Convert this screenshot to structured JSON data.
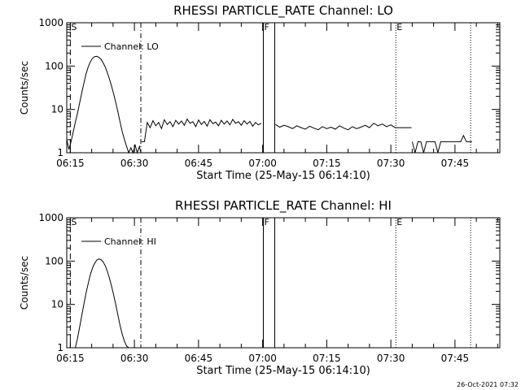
{
  "footer": {
    "timestamp": "26-Oct-2021 07:32"
  },
  "chart_data": [
    {
      "type": "line",
      "title": "RHESSI PARTICLE_RATE Channel: LO",
      "xlabel": "Start Time (25-May-15 06:14:10)",
      "ylabel": "Counts/sec",
      "yscale": "log",
      "ylim": [
        1,
        1000
      ],
      "xlim": [
        "06:14:10",
        "07:55:30"
      ],
      "x_ticks": [
        "06:15",
        "06:30",
        "06:45",
        "07:00",
        "07:15",
        "07:30",
        "07:45"
      ],
      "y_ticks": [
        "1",
        "10",
        "100",
        "1000"
      ],
      "legend": {
        "label": "Channel: LO",
        "position": "top-left"
      },
      "grid": false,
      "markers": [
        {
          "time": "06:15:00",
          "label": "S",
          "style": "dashed"
        },
        {
          "time": "06:31:30",
          "label": "",
          "style": "dash-dot"
        },
        {
          "time": "07:00:10",
          "label": "F",
          "style": "solid"
        },
        {
          "time": "07:02:50",
          "label": "",
          "style": "solid"
        },
        {
          "time": "07:31:10",
          "label": "E",
          "style": "dotted"
        },
        {
          "time": "07:48:40",
          "label": "",
          "style": "dotted"
        }
      ],
      "series": [
        {
          "segments": [
            {
              "x": [
                "06:14:10",
                "06:14:40",
                "06:15:10",
                "06:15:40",
                "06:16:10",
                "06:16:40",
                "06:17:10",
                "06:17:40",
                "06:18:10",
                "06:18:40",
                "06:19:10",
                "06:19:40",
                "06:20:10",
                "06:20:40",
                "06:21:10",
                "06:21:40",
                "06:22:10",
                "06:22:40",
                "06:23:10",
                "06:23:40",
                "06:24:10",
                "06:24:40",
                "06:25:10",
                "06:25:40",
                "06:26:10",
                "06:26:40",
                "06:27:10",
                "06:27:40",
                "06:28:10",
                "06:28:40",
                "06:29:10",
                "06:29:40",
                "06:30:10",
                "06:30:40",
                "06:31:10",
                "06:31:30"
              ],
              "y": [
                2,
                1.2,
                1.8,
                3,
                5,
                8,
                14,
                24,
                40,
                65,
                95,
                125,
                150,
                165,
                168,
                160,
                145,
                120,
                95,
                70,
                50,
                34,
                22,
                14,
                8.5,
                5,
                3,
                2,
                1.4,
                1,
                1.3,
                1,
                1.5,
                1,
                1.4,
                1
              ]
            },
            {
              "x": [
                "06:31:40",
                "06:32:20",
                "06:33:00",
                "06:33:40",
                "06:34:20",
                "06:35:00",
                "06:35:40",
                "06:36:20",
                "06:37:00",
                "06:37:40",
                "06:38:20",
                "06:39:00",
                "06:39:40",
                "06:40:20",
                "06:41:00",
                "06:41:40",
                "06:42:20",
                "06:43:00",
                "06:43:40",
                "06:44:20",
                "06:45:00",
                "06:45:40",
                "06:46:20",
                "06:47:00",
                "06:47:40",
                "06:48:20",
                "06:49:00",
                "06:49:40",
                "06:50:20",
                "06:51:00",
                "06:51:40",
                "06:52:20",
                "06:53:00",
                "06:53:40",
                "06:54:20",
                "06:55:00",
                "06:55:40",
                "06:56:20",
                "06:57:00",
                "06:57:40",
                "06:58:20",
                "06:59:00",
                "06:59:40"
              ],
              "y": [
                1.8,
                1.8,
                5,
                3.8,
                5.5,
                4.2,
                5,
                3.6,
                5.8,
                4.5,
                5.2,
                4,
                5.6,
                4.6,
                5.4,
                4.3,
                6,
                4.8,
                5.2,
                4,
                5.7,
                4.5,
                5.3,
                4.1,
                5.8,
                4.7,
                5.1,
                4.2,
                5.6,
                4.6,
                5.4,
                4.4,
                5.9,
                4.8,
                5.2,
                4.3,
                5.5,
                4.6,
                5.3,
                4.1,
                5,
                4.4,
                4.8
              ]
            },
            {
              "x": [
                "07:03:00",
                "07:04:00",
                "07:05:00",
                "07:06:00",
                "07:07:00",
                "07:08:00",
                "07:09:00",
                "07:10:00",
                "07:11:00",
                "07:12:00",
                "07:13:00",
                "07:14:00",
                "07:15:00",
                "07:16:00",
                "07:17:00",
                "07:18:00",
                "07:19:00",
                "07:20:00",
                "07:21:00",
                "07:22:00",
                "07:23:00",
                "07:24:00",
                "07:25:00",
                "07:26:00",
                "07:27:00",
                "07:28:00",
                "07:29:00",
                "07:30:00",
                "07:31:00",
                "07:32:00",
                "07:33:00",
                "07:34:00",
                "07:34:50"
              ],
              "y": [
                4.5,
                3.9,
                4.3,
                4,
                3.6,
                4.2,
                3.8,
                3.5,
                4.1,
                3.7,
                3.4,
                4,
                3.6,
                3.9,
                3.5,
                4.2,
                3.7,
                3.4,
                4,
                3.6,
                3.9,
                4.3,
                3.8,
                4.8,
                4.2,
                4.6,
                4,
                4.4,
                3.8,
                3.8,
                3.8,
                3.8,
                3.8
              ]
            },
            {
              "x": [
                "07:35:00",
                "07:35:40",
                "07:36:20",
                "07:37:00",
                "07:37:40",
                "07:38:20",
                "07:39:00",
                "07:39:40",
                "07:40:20",
                "07:41:00",
                "07:41:40",
                "07:42:20",
                "07:43:00",
                "07:43:40",
                "07:44:20",
                "07:45:00",
                "07:45:40",
                "07:46:20",
                "07:47:00",
                "07:47:40",
                "07:48:20",
                "07:49:00"
              ],
              "y": [
                1.8,
                1,
                1.8,
                1.8,
                1,
                1.8,
                1.8,
                1.8,
                1.8,
                1,
                1.8,
                1.8,
                1.8,
                1.8,
                1.8,
                1.8,
                1.8,
                1.8,
                2.5,
                1.8,
                1.8,
                1.8
              ]
            }
          ]
        }
      ]
    },
    {
      "type": "line",
      "title": "RHESSI PARTICLE_RATE Channel: HI",
      "xlabel": "Start Time (25-May-15 06:14:10)",
      "ylabel": "Counts/sec",
      "yscale": "log",
      "ylim": [
        1,
        1000
      ],
      "xlim": [
        "06:14:10",
        "07:55:30"
      ],
      "x_ticks": [
        "06:15",
        "06:30",
        "06:45",
        "07:00",
        "07:15",
        "07:30",
        "07:45"
      ],
      "y_ticks": [
        "1",
        "10",
        "100",
        "1000"
      ],
      "legend": {
        "label": "Channel: HI",
        "position": "top-left"
      },
      "grid": false,
      "markers": [
        {
          "time": "06:15:00",
          "label": "S",
          "style": "dashed"
        },
        {
          "time": "06:31:30",
          "label": "",
          "style": "dash-dot"
        },
        {
          "time": "07:00:10",
          "label": "F",
          "style": "solid"
        },
        {
          "time": "07:02:50",
          "label": "",
          "style": "solid"
        },
        {
          "time": "07:31:10",
          "label": "E",
          "style": "dotted"
        },
        {
          "time": "07:48:40",
          "label": "",
          "style": "dotted"
        }
      ],
      "series": [
        {
          "segments": [
            {
              "x": [
                "06:16:10",
                "06:16:40",
                "06:17:10",
                "06:17:40",
                "06:18:10",
                "06:18:40",
                "06:19:10",
                "06:19:40",
                "06:20:10",
                "06:20:40",
                "06:21:10",
                "06:21:40",
                "06:22:10",
                "06:22:40",
                "06:23:10",
                "06:23:40",
                "06:24:10",
                "06:24:40",
                "06:25:10",
                "06:25:40",
                "06:26:10",
                "06:26:40",
                "06:27:10",
                "06:27:40",
                "06:28:10",
                "06:28:40"
              ],
              "y": [
                1,
                1.6,
                3,
                5.5,
                10,
                18,
                30,
                48,
                68,
                88,
                105,
                112,
                108,
                96,
                78,
                58,
                40,
                26,
                16,
                9.5,
                5.5,
                3.2,
                2,
                1.4,
                1.1,
                1
              ]
            }
          ]
        }
      ]
    }
  ]
}
